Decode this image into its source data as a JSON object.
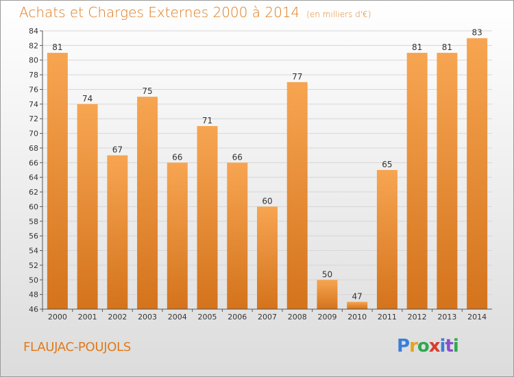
{
  "header": {
    "title": "Achats et Charges Externes 2000 à 2014",
    "unit": "(en milliers d'€)"
  },
  "footer": {
    "commune": "FLAUJAC-POUJOLS",
    "logo_letters": [
      "P",
      "r",
      "o",
      "x",
      "i",
      "t",
      "i"
    ],
    "logo_colors": [
      "#3a7fd6",
      "#e8a21a",
      "#2fa84f",
      "#d83a2e",
      "#3a7fd6",
      "#8a4fc9",
      "#2fa84f"
    ]
  },
  "chart_data": {
    "type": "bar",
    "categories": [
      "2000",
      "2001",
      "2002",
      "2003",
      "2004",
      "2005",
      "2006",
      "2007",
      "2008",
      "2009",
      "2010",
      "2011",
      "2012",
      "2013",
      "2014"
    ],
    "values": [
      81,
      74,
      67,
      75,
      66,
      71,
      66,
      60,
      77,
      50,
      47,
      65,
      81,
      81,
      83
    ],
    "title": "Achats et Charges Externes 2000 à 2014",
    "xlabel": "",
    "ylabel": "",
    "ylim": [
      46,
      84
    ],
    "yticks": [
      46,
      48,
      50,
      52,
      54,
      56,
      58,
      60,
      62,
      64,
      66,
      68,
      70,
      72,
      74,
      76,
      78,
      80,
      82,
      84
    ],
    "grid": true,
    "bar_color_top": "#f7a552",
    "bar_color_bottom": "#d4731c"
  }
}
